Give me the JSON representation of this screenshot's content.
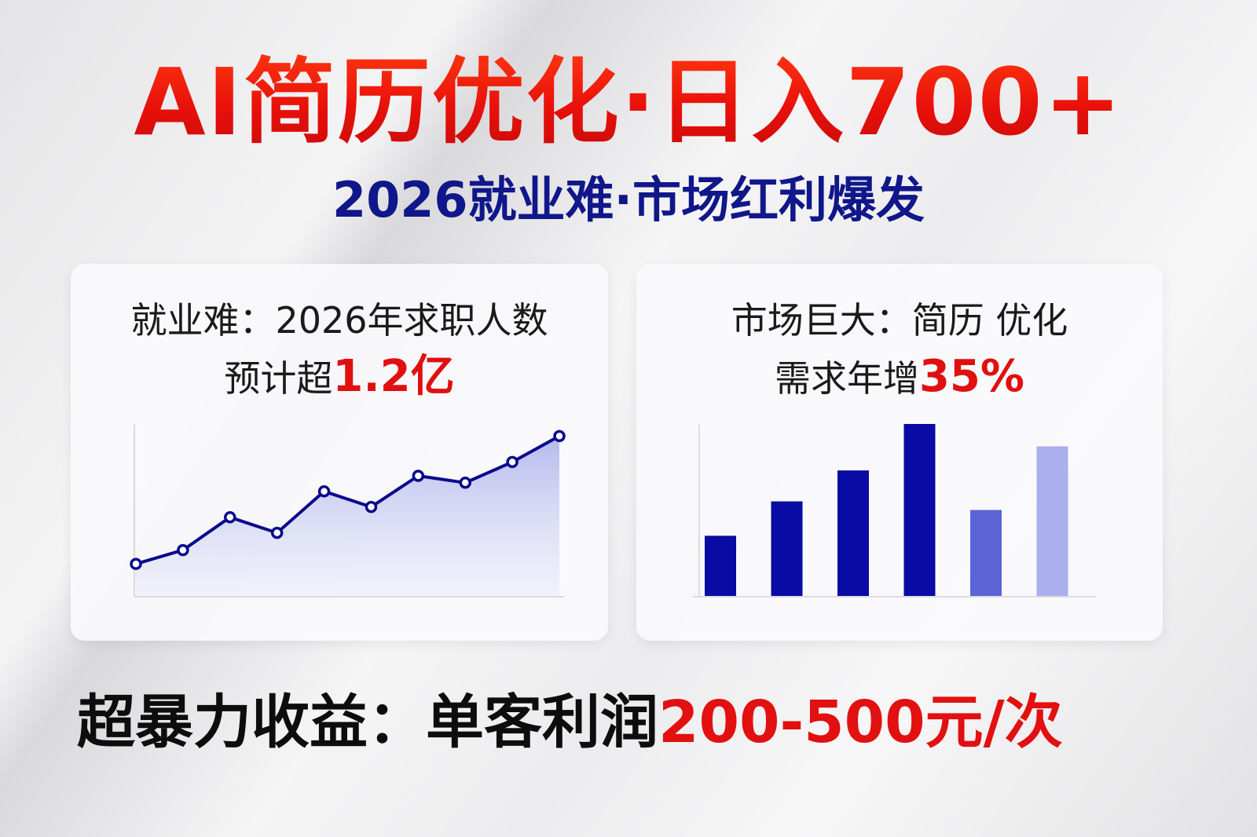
{
  "headline": "AI简历优化·日入700+",
  "subheadline": "2026就业难·市场红利爆发",
  "cards": [
    {
      "line1": "就业难：2026年求职人数",
      "line2_prefix": "预计超",
      "line2_highlight": "1.2亿"
    },
    {
      "line1": "市场巨大：简历 优化",
      "line2_prefix": "需求年增",
      "line2_highlight": "35%"
    }
  ],
  "bottom": {
    "prefix": "超暴力收益：单客利润",
    "highlight": "200-500元/次"
  },
  "colors": {
    "headline_red": "#e5140c",
    "navy": "#10178a",
    "chart_blue": "#0a0aa0",
    "highlight_red": "#e01010"
  },
  "chart_data": [
    {
      "type": "area",
      "values": [
        19,
        27,
        46,
        37,
        61,
        52,
        70,
        66,
        78,
        93
      ],
      "ylim": [
        0,
        100
      ],
      "grid": false,
      "legend": "none"
    },
    {
      "type": "bar",
      "values": [
        35,
        55,
        73,
        100,
        50,
        87
      ],
      "ylim": [
        0,
        100
      ],
      "grid": false,
      "legend": "none",
      "bar_colors": [
        "#0a0aa5",
        "#0a0aa5",
        "#0a0aa5",
        "#0a0aa5",
        "#5a64d6",
        "#aab0ec"
      ]
    }
  ]
}
